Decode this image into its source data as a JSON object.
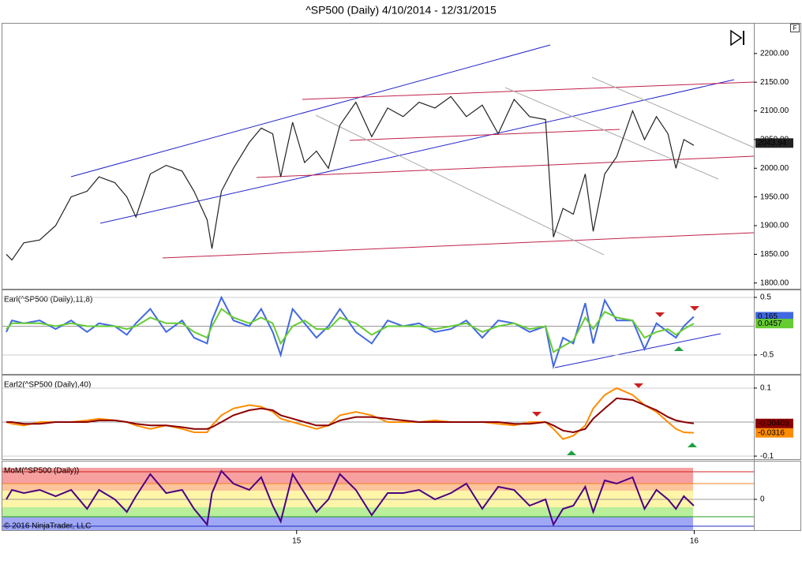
{
  "copyright": "© 2016 NinjaTrader, LLC",
  "toolbar": {
    "button": "F"
  },
  "chart_data": [
    {
      "type": "line",
      "title": "^SP500 (Daily)  4/10/2014 - 12/31/2015",
      "last_value": 2043.94,
      "xlim": [
        14.26,
        16.15
      ],
      "ylim": [
        1790,
        2252
      ],
      "yticks": [
        {
          "value": 1800,
          "label": "1800.00"
        },
        {
          "value": 1850,
          "label": "1850.00"
        },
        {
          "value": 1900,
          "label": "1900.00"
        },
        {
          "value": 1950,
          "label": "1950.00"
        },
        {
          "value": 2000,
          "label": "2000.00"
        },
        {
          "value": 2050,
          "label": "2050.00"
        },
        {
          "value": 2100,
          "label": "2100.00"
        },
        {
          "value": 2150,
          "label": "2150.00"
        },
        {
          "value": 2200,
          "label": "2200.00"
        }
      ],
      "x": [
        14.27,
        14.284,
        14.314,
        14.354,
        14.394,
        14.433,
        14.473,
        14.503,
        14.543,
        14.573,
        14.596,
        14.632,
        14.672,
        14.712,
        14.742,
        14.775,
        14.787,
        14.811,
        14.841,
        14.881,
        14.911,
        14.94,
        14.96,
        14.99,
        15.02,
        15.05,
        15.08,
        15.109,
        15.149,
        15.189,
        15.229,
        15.268,
        15.308,
        15.348,
        15.388,
        15.427,
        15.467,
        15.507,
        15.547,
        15.586,
        15.626,
        15.646,
        15.67,
        15.696,
        15.726,
        15.746,
        15.775,
        15.805,
        15.845,
        15.875,
        15.905,
        15.934,
        15.954,
        15.974,
        15.999
      ],
      "series": [
        {
          "color": "#222222",
          "values": [
            1850,
            1840,
            1870,
            1875,
            1900,
            1950,
            1960,
            1985,
            1975,
            1950,
            1915,
            1990,
            2005,
            1995,
            1960,
            1910,
            1860,
            1960,
            2000,
            2045,
            2070,
            2060,
            1985,
            2080,
            2010,
            2030,
            2000,
            2075,
            2115,
            2055,
            2105,
            2090,
            2115,
            2105,
            2125,
            2090,
            2110,
            2060,
            2120,
            2090,
            2085,
            1880,
            1930,
            1920,
            1990,
            1890,
            1990,
            2020,
            2100,
            2050,
            2090,
            2060,
            2000,
            2050,
            2040
          ]
        }
      ]
    },
    {
      "type": "line",
      "title": "Earl(^SP500 (Daily),11,8)",
      "xlim": [
        14.26,
        16.15
      ],
      "ylim": [
        -0.829,
        0.623
      ],
      "yticks": [
        -0.5,
        0.5
      ],
      "x": [
        14.27,
        14.284,
        14.314,
        14.354,
        14.394,
        14.433,
        14.473,
        14.503,
        14.543,
        14.573,
        14.596,
        14.632,
        14.672,
        14.712,
        14.742,
        14.775,
        14.787,
        14.811,
        14.841,
        14.881,
        14.911,
        14.94,
        14.96,
        14.99,
        15.02,
        15.05,
        15.08,
        15.109,
        15.149,
        15.189,
        15.229,
        15.268,
        15.308,
        15.348,
        15.388,
        15.427,
        15.467,
        15.507,
        15.547,
        15.586,
        15.626,
        15.646,
        15.67,
        15.696,
        15.726,
        15.746,
        15.775,
        15.805,
        15.845,
        15.875,
        15.905,
        15.934,
        15.954,
        15.974,
        15.999
      ],
      "series": [
        {
          "color": "#4169e1",
          "values": [
            -0.1,
            0.1,
            0.05,
            0.1,
            -0.05,
            0.1,
            -0.1,
            0.05,
            0.0,
            -0.15,
            0.05,
            0.3,
            -0.1,
            0.1,
            -0.2,
            -0.3,
            0.1,
            0.5,
            0.1,
            0.0,
            0.3,
            -0.1,
            -0.5,
            0.3,
            0.05,
            -0.2,
            0.0,
            0.3,
            -0.1,
            -0.3,
            0.1,
            0.0,
            0.05,
            -0.1,
            -0.05,
            0.1,
            -0.2,
            0.1,
            0.05,
            -0.1,
            0.0,
            -0.7,
            -0.2,
            -0.3,
            0.4,
            -0.3,
            0.45,
            0.1,
            0.1,
            -0.4,
            0.05,
            -0.1,
            -0.2,
            0.0,
            0.165
          ]
        },
        {
          "color": "#66cc33",
          "values": [
            -0.05,
            0.05,
            0.05,
            0.05,
            0.0,
            0.05,
            0.0,
            0.0,
            0.0,
            -0.05,
            0.0,
            0.15,
            0.05,
            0.05,
            -0.1,
            -0.2,
            0.0,
            0.3,
            0.15,
            0.05,
            0.15,
            0.05,
            -0.3,
            0.0,
            0.1,
            -0.05,
            -0.05,
            0.15,
            0.05,
            -0.15,
            0.0,
            0.0,
            0.0,
            -0.05,
            0.0,
            0.05,
            -0.1,
            0.0,
            0.05,
            -0.05,
            0.0,
            -0.45,
            -0.35,
            -0.25,
            0.15,
            -0.05,
            0.25,
            0.15,
            0.1,
            -0.2,
            -0.1,
            -0.05,
            -0.15,
            -0.05,
            0.0457
          ]
        }
      ]
    },
    {
      "type": "line",
      "title": "Earl2(^SP500 (Daily),40)",
      "xlim": [
        14.26,
        16.15
      ],
      "ylim": [
        -0.109,
        0.137
      ],
      "yticks": [
        -0.1,
        0.1
      ],
      "x": [
        14.27,
        14.284,
        14.314,
        14.354,
        14.394,
        14.433,
        14.473,
        14.503,
        14.543,
        14.573,
        14.596,
        14.632,
        14.672,
        14.712,
        14.742,
        14.775,
        14.787,
        14.811,
        14.841,
        14.881,
        14.911,
        14.94,
        14.96,
        14.99,
        15.02,
        15.05,
        15.08,
        15.109,
        15.149,
        15.189,
        15.229,
        15.268,
        15.308,
        15.348,
        15.388,
        15.427,
        15.467,
        15.507,
        15.547,
        15.586,
        15.626,
        15.646,
        15.67,
        15.696,
        15.726,
        15.746,
        15.775,
        15.805,
        15.845,
        15.875,
        15.905,
        15.934,
        15.954,
        15.974,
        15.999
      ],
      "series": [
        {
          "color": "#ff8c00",
          "values": [
            0.0,
            -0.005,
            -0.01,
            0.0,
            0.0,
            0.0,
            0.005,
            0.01,
            0.005,
            0.0,
            -0.01,
            -0.02,
            -0.01,
            -0.02,
            -0.03,
            -0.03,
            -0.01,
            0.02,
            0.04,
            0.05,
            0.045,
            0.03,
            0.01,
            0.0,
            -0.01,
            -0.02,
            -0.01,
            0.02,
            0.03,
            0.02,
            0.0,
            0.0,
            0.0,
            0.005,
            0.0,
            0.0,
            0.0,
            -0.005,
            -0.01,
            0.0,
            0.0,
            -0.02,
            -0.05,
            -0.04,
            -0.01,
            0.04,
            0.08,
            0.1,
            0.08,
            0.05,
            0.03,
            0.0,
            -0.02,
            -0.03,
            -0.0316
          ]
        },
        {
          "color": "#8b0000",
          "values": [
            0.0,
            0.0,
            -0.005,
            -0.005,
            0.0,
            0.0,
            0.0,
            0.005,
            0.005,
            0.0,
            -0.005,
            -0.01,
            -0.01,
            -0.015,
            -0.02,
            -0.02,
            -0.015,
            0.0,
            0.02,
            0.035,
            0.04,
            0.035,
            0.02,
            0.01,
            0.0,
            -0.01,
            -0.01,
            0.005,
            0.015,
            0.015,
            0.01,
            0.005,
            0.0,
            0.0,
            0.0,
            0.0,
            0.0,
            0.0,
            -0.005,
            -0.005,
            0.0,
            -0.01,
            -0.025,
            -0.03,
            -0.02,
            0.01,
            0.04,
            0.07,
            0.065,
            0.05,
            0.035,
            0.015,
            0.005,
            0.0,
            -0.00403
          ]
        }
      ]
    },
    {
      "type": "line",
      "title": "MoM(^SP500 (Daily))",
      "xlim": [
        14.26,
        16.15
      ],
      "ylim": [
        -0.975,
        1.2
      ],
      "yticks": [
        0
      ],
      "xticks": [
        15,
        16
      ],
      "x": [
        14.27,
        14.284,
        14.314,
        14.354,
        14.394,
        14.433,
        14.473,
        14.503,
        14.543,
        14.573,
        14.596,
        14.632,
        14.672,
        14.712,
        14.742,
        14.775,
        14.787,
        14.811,
        14.841,
        14.881,
        14.911,
        14.94,
        14.96,
        14.99,
        15.02,
        15.05,
        15.08,
        15.109,
        15.149,
        15.189,
        15.229,
        15.268,
        15.308,
        15.348,
        15.388,
        15.427,
        15.467,
        15.507,
        15.547,
        15.586,
        15.626,
        15.646,
        15.67,
        15.696,
        15.726,
        15.746,
        15.775,
        15.805,
        15.845,
        15.875,
        15.905,
        15.934,
        15.954,
        15.974,
        15.999
      ],
      "series": [
        {
          "color": "#4b0082",
          "values": [
            0.0,
            0.3,
            0.2,
            0.3,
            0.1,
            0.3,
            -0.3,
            0.3,
            0.0,
            -0.4,
            0.1,
            0.8,
            0.2,
            0.3,
            -0.3,
            -0.8,
            0.2,
            0.9,
            0.5,
            0.3,
            0.7,
            -0.2,
            -0.7,
            0.8,
            0.2,
            -0.4,
            0.0,
            0.8,
            0.3,
            -0.5,
            0.2,
            0.2,
            0.3,
            0.0,
            0.2,
            0.5,
            -0.3,
            0.4,
            0.3,
            -0.2,
            0.0,
            -0.8,
            -0.3,
            -0.2,
            0.4,
            -0.4,
            0.6,
            0.5,
            0.7,
            -0.3,
            0.3,
            0.0,
            -0.3,
            0.1,
            -0.2
          ]
        }
      ]
    }
  ]
}
